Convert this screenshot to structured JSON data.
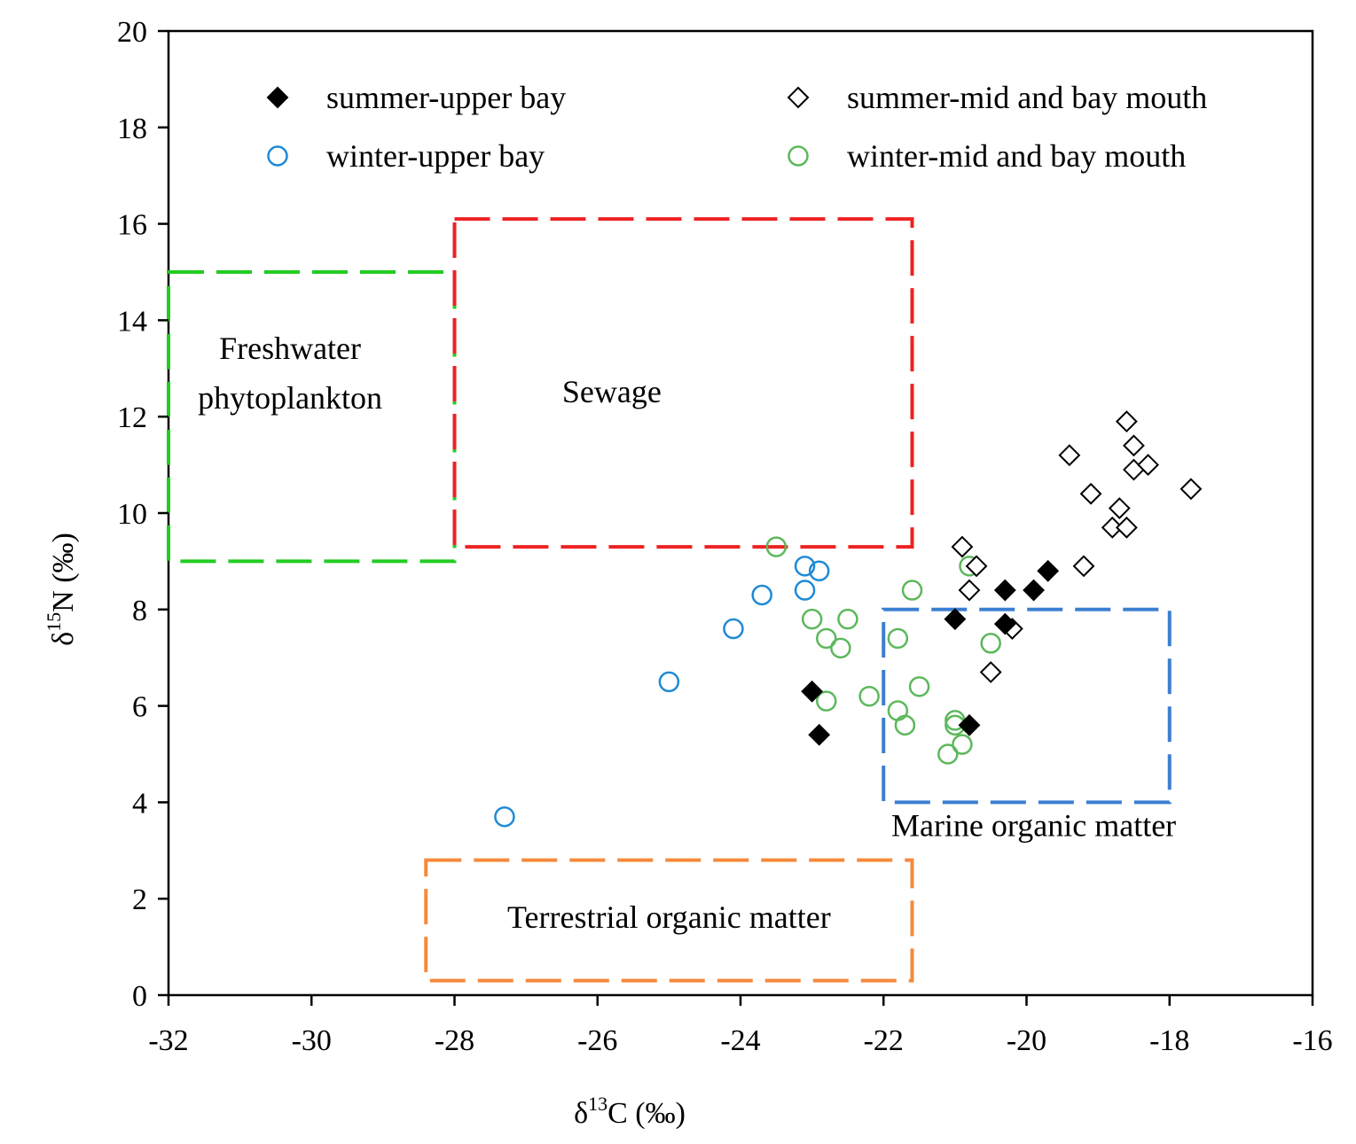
{
  "chart_data": {
    "type": "scatter",
    "xlabel": {
      "prefix": "δ",
      "sup": "13",
      "suffix": "C (‰)"
    },
    "ylabel": {
      "prefix": "δ",
      "sup": "15",
      "suffix": "N (‰)"
    },
    "xlim": [
      -32,
      -16
    ],
    "ylim": [
      0,
      20
    ],
    "xticks": [
      -32,
      -30,
      -28,
      -26,
      -24,
      -22,
      -20,
      -18,
      -16
    ],
    "yticks": [
      0,
      2,
      4,
      6,
      8,
      10,
      12,
      14,
      16,
      18,
      20
    ],
    "grid": false,
    "legend_position": "top",
    "series": [
      {
        "name": "summer-upper bay",
        "marker": "filled-diamond",
        "color": "#000000",
        "points": [
          [
            -23.0,
            6.3
          ],
          [
            -22.9,
            5.4
          ],
          [
            -21.0,
            7.8
          ],
          [
            -20.8,
            5.6
          ],
          [
            -20.3,
            8.4
          ],
          [
            -20.3,
            7.7
          ],
          [
            -19.9,
            8.4
          ],
          [
            -19.7,
            8.8
          ]
        ]
      },
      {
        "name": "summer-mid and bay mouth",
        "marker": "open-diamond",
        "color": "#000000",
        "points": [
          [
            -20.9,
            9.3
          ],
          [
            -20.8,
            8.4
          ],
          [
            -20.7,
            8.9
          ],
          [
            -20.5,
            6.7
          ],
          [
            -20.2,
            7.6
          ],
          [
            -19.4,
            11.2
          ],
          [
            -19.2,
            8.9
          ],
          [
            -19.1,
            10.4
          ],
          [
            -18.8,
            9.7
          ],
          [
            -18.7,
            10.1
          ],
          [
            -18.6,
            11.9
          ],
          [
            -18.6,
            9.7
          ],
          [
            -18.5,
            11.4
          ],
          [
            -18.5,
            10.9
          ],
          [
            -18.3,
            11.0
          ],
          [
            -17.7,
            10.5
          ]
        ]
      },
      {
        "name": "winter-upper bay",
        "marker": "open-circle",
        "color": "#1f8ad6",
        "points": [
          [
            -27.3,
            3.7
          ],
          [
            -25.0,
            6.5
          ],
          [
            -24.1,
            7.6
          ],
          [
            -23.7,
            8.3
          ],
          [
            -23.1,
            8.9
          ],
          [
            -23.1,
            8.4
          ],
          [
            -22.9,
            8.8
          ]
        ]
      },
      {
        "name": "winter-mid and bay mouth",
        "marker": "open-circle",
        "color": "#5cb85c",
        "points": [
          [
            -23.5,
            9.3
          ],
          [
            -23.0,
            7.8
          ],
          [
            -22.8,
            7.4
          ],
          [
            -22.8,
            6.1
          ],
          [
            -22.6,
            7.2
          ],
          [
            -22.5,
            7.8
          ],
          [
            -22.2,
            6.2
          ],
          [
            -21.8,
            7.4
          ],
          [
            -21.8,
            5.9
          ],
          [
            -21.7,
            5.6
          ],
          [
            -21.6,
            8.4
          ],
          [
            -21.5,
            6.4
          ],
          [
            -21.1,
            5.0
          ],
          [
            -21.0,
            5.7
          ],
          [
            -21.0,
            5.6
          ],
          [
            -20.9,
            5.2
          ],
          [
            -20.8,
            8.9
          ],
          [
            -20.5,
            7.3
          ]
        ]
      }
    ],
    "regions": [
      {
        "label": [
          "Freshwater",
          "phytoplankton"
        ],
        "color": "#22cc22",
        "x": [
          -32,
          -28
        ],
        "y": [
          9,
          15
        ],
        "label_at": [
          -30.3,
          13.2
        ]
      },
      {
        "label": [
          "Sewage"
        ],
        "color": "#ee2222",
        "x": [
          -28,
          -21.6
        ],
        "y": [
          9.3,
          16.1
        ],
        "label_at": [
          -25.8,
          12.3
        ]
      },
      {
        "label": [
          "Marine organic matter"
        ],
        "color": "#3b7fd0",
        "x": [
          -22,
          -18
        ],
        "y": [
          4,
          8
        ],
        "label_at": [
          -19.9,
          3.3
        ]
      },
      {
        "label": [
          "Terrestrial organic matter"
        ],
        "color": "#f58a3c",
        "x": [
          -28.4,
          -21.6
        ],
        "y": [
          0.3,
          2.8
        ],
        "label_at": [
          -25.0,
          1.4
        ]
      }
    ]
  }
}
